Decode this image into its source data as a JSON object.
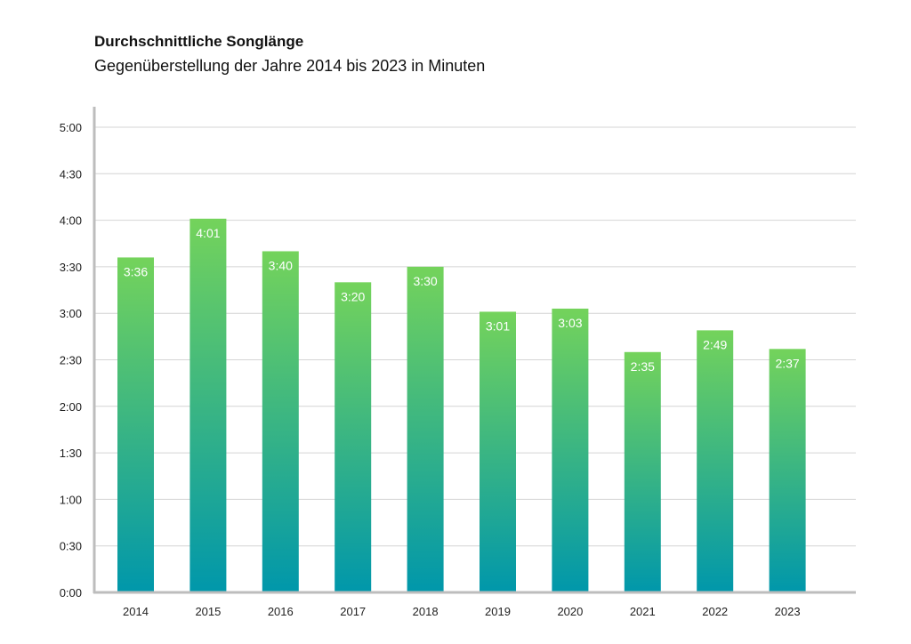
{
  "chart_data": {
    "type": "bar",
    "title": "Durchschnittliche Songlänge",
    "subtitle": "Gegenüberstellung der Jahre 2014 bis 2023 in Minuten",
    "categories": [
      "2014",
      "2015",
      "2016",
      "2017",
      "2018",
      "2019",
      "2020",
      "2021",
      "2022",
      "2023"
    ],
    "values": [
      216,
      241,
      220,
      200,
      210,
      181,
      183,
      155,
      169,
      157
    ],
    "data_labels": [
      "3:36",
      "4:01",
      "3:40",
      "3:20",
      "3:30",
      "3:01",
      "3:03",
      "2:35",
      "2:49",
      "2:37"
    ],
    "y_unit": "seconds",
    "ylim": [
      0,
      300
    ],
    "y_ticks": [
      0,
      30,
      60,
      90,
      120,
      150,
      180,
      210,
      240,
      270,
      300
    ],
    "y_tick_labels": [
      "0:00",
      "0:30",
      "1:00",
      "1:30",
      "2:00",
      "2:30",
      "3:00",
      "3:30",
      "4:00",
      "4:30",
      "5:00"
    ],
    "grid": true,
    "legend": "none",
    "colors": {
      "bar_top": "#74d35b",
      "bar_bottom": "#0097ab",
      "grid": "#d4d4d4",
      "axis": "#bdbdbd"
    }
  }
}
